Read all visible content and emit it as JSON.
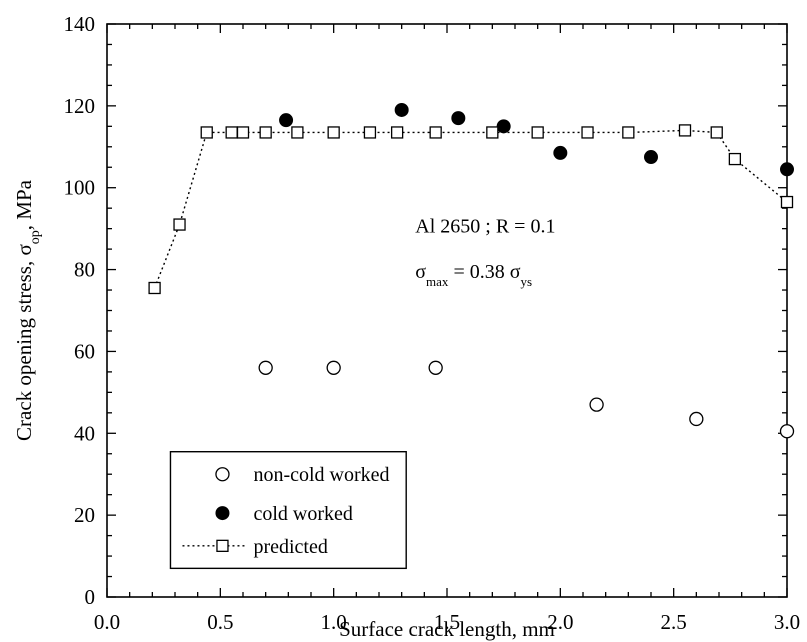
{
  "chart_data": {
    "type": "scatter",
    "title": "",
    "xlabel": "Surface crack length, mm",
    "ylabel": {
      "main": "Crack opening stress, σ",
      "subscript": "op",
      "suffix": ", MPa"
    },
    "xlim": [
      0.0,
      3.0
    ],
    "ylim": [
      0,
      140
    ],
    "xticks": [
      0.0,
      0.5,
      1.0,
      1.5,
      2.0,
      2.5,
      3.0
    ],
    "xtick_labels": [
      "0.0",
      "0.5",
      "1.0",
      "1.5",
      "2.0",
      "2.5",
      "3.0"
    ],
    "yticks": [
      0,
      20,
      40,
      60,
      80,
      100,
      120,
      140
    ],
    "ytick_labels": [
      "0",
      "20",
      "40",
      "60",
      "80",
      "100",
      "120",
      "140"
    ],
    "grid": false,
    "legend_position": "bottom-left",
    "annotations": {
      "line1": "Al 2650 ; R = 0.1",
      "line2_parts": [
        {
          "text": "σ",
          "sub": false
        },
        {
          "text": "max",
          "sub": true
        },
        {
          "text": " = 0.38 σ",
          "sub": false
        },
        {
          "text": "ys",
          "sub": true
        }
      ]
    },
    "series": [
      {
        "name": "non-cold worked",
        "marker": "open-circle",
        "color": "#000000",
        "points": [
          [
            0.7,
            56
          ],
          [
            1.0,
            56
          ],
          [
            1.45,
            56
          ],
          [
            2.16,
            47
          ],
          [
            2.6,
            43.5
          ],
          [
            3.0,
            40.5
          ]
        ]
      },
      {
        "name": "cold worked",
        "marker": "filled-circle",
        "color": "#000000",
        "points": [
          [
            0.79,
            116.5
          ],
          [
            1.3,
            119
          ],
          [
            1.55,
            117
          ],
          [
            1.75,
            115
          ],
          [
            2.0,
            108.5
          ],
          [
            2.4,
            107.5
          ],
          [
            3.0,
            104.5
          ]
        ]
      },
      {
        "name": "predicted",
        "marker": "open-square",
        "line": "dotted",
        "color": "#000000",
        "points": [
          [
            0.21,
            75.5
          ],
          [
            0.32,
            91
          ],
          [
            0.44,
            113.5
          ],
          [
            0.55,
            113.5
          ],
          [
            0.6,
            113.5
          ],
          [
            0.7,
            113.5
          ],
          [
            0.84,
            113.5
          ],
          [
            1.0,
            113.5
          ],
          [
            1.16,
            113.5
          ],
          [
            1.28,
            113.5
          ],
          [
            1.45,
            113.5
          ],
          [
            1.7,
            113.5
          ],
          [
            1.9,
            113.5
          ],
          [
            2.12,
            113.5
          ],
          [
            2.3,
            113.5
          ],
          [
            2.55,
            114
          ],
          [
            2.69,
            113.5
          ],
          [
            2.77,
            107
          ],
          [
            3.0,
            96.5
          ]
        ]
      }
    ]
  }
}
